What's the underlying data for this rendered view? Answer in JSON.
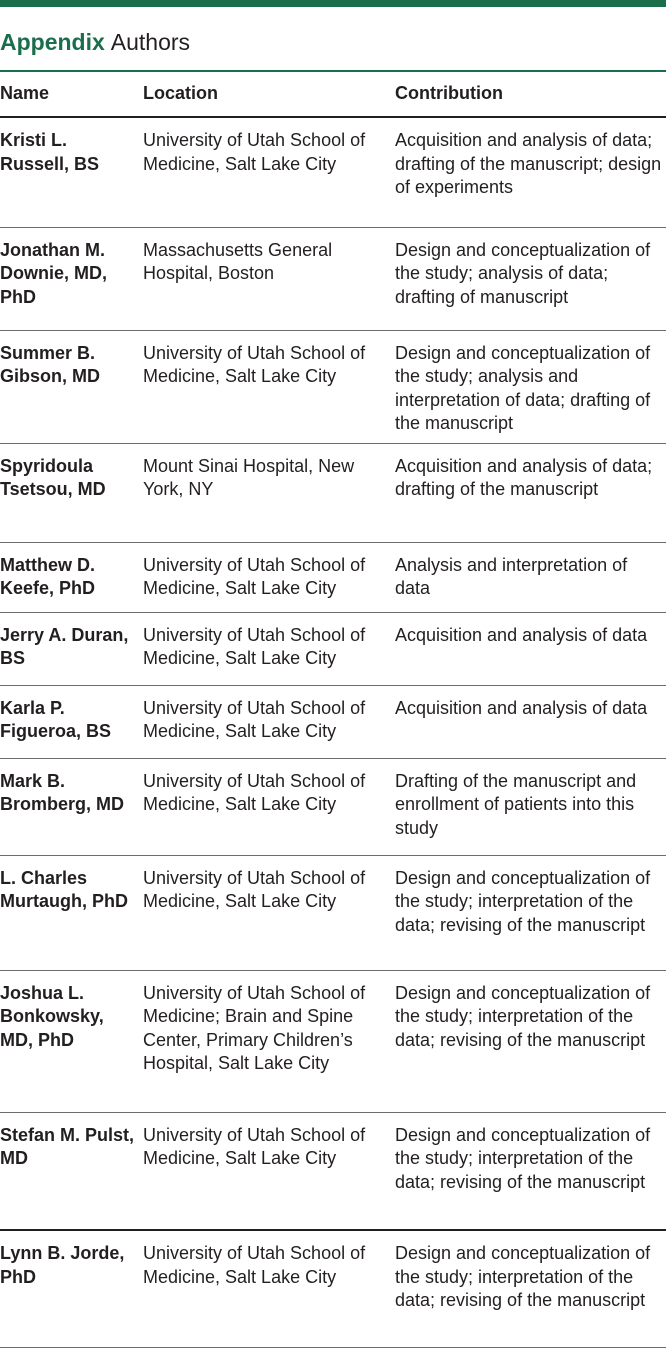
{
  "title": {
    "label": "Appendix",
    "text": "Authors"
  },
  "columns": [
    "Name",
    "Location",
    "Contribution"
  ],
  "rows": [
    {
      "name": "Kristi L. Russell, BS",
      "location": "University of Utah School of Medicine, Salt Lake City",
      "contribution": "Acquisition and analysis of data; drafting of the manuscript; design of experiments"
    },
    {
      "name": "Jonathan M. Downie, MD, PhD",
      "location": "Massachusetts General Hospital, Boston",
      "contribution": "Design and conceptualization of the study; analysis of data; drafting of manuscript"
    },
    {
      "name": "Summer B. Gibson, MD",
      "location": "University of Utah School of Medicine, Salt Lake City",
      "contribution": "Design and conceptualization of the study; analysis and interpretation of data; drafting of the manuscript"
    },
    {
      "name": "Spyridoula Tsetsou, MD",
      "location": "Mount Sinai Hospital, New York, NY",
      "contribution": "Acquisition and analysis of data; drafting of the manuscript"
    },
    {
      "name": "Matthew D. Keefe, PhD",
      "location": "University of Utah School of Medicine, Salt Lake City",
      "contribution": "Analysis and interpretation of data"
    },
    {
      "name": "Jerry A. Duran, BS",
      "location": "University of Utah School of Medicine, Salt Lake City",
      "contribution": "Acquisition and analysis of data"
    },
    {
      "name": "Karla P. Figueroa, BS",
      "location": "University of Utah School of Medicine, Salt Lake City",
      "contribution": "Acquisition and analysis of data"
    },
    {
      "name": "Mark B. Bromberg, MD",
      "location": "University of Utah School of Medicine, Salt Lake City",
      "contribution": "Drafting of the manuscript and enrollment of patients into this study"
    },
    {
      "name": "L. Charles Murtaugh, PhD",
      "location": "University of Utah School of Medicine, Salt Lake City",
      "contribution": "Design and conceptualization of the study; interpretation of the data; revising of the manuscript"
    },
    {
      "name": "Joshua L. Bonkowsky, MD, PhD",
      "location": "University of Utah School of Medicine; Brain and Spine Center, Primary Children’s Hospital, Salt Lake City",
      "contribution": "Design and conceptualization of the study; interpretation of the data; revising of the manuscript"
    },
    {
      "name": "Stefan M. Pulst, MD",
      "location": "University of Utah School of Medicine, Salt Lake City",
      "contribution": "Design and conceptualization of the study; interpretation of the data; revising of the manuscript"
    },
    {
      "name": "Lynn B. Jorde, PhD",
      "location": "University of Utah School of Medicine, Salt Lake City",
      "contribution": "Design and conceptualization of the study; interpretation of the data; revising of the manuscript"
    }
  ]
}
